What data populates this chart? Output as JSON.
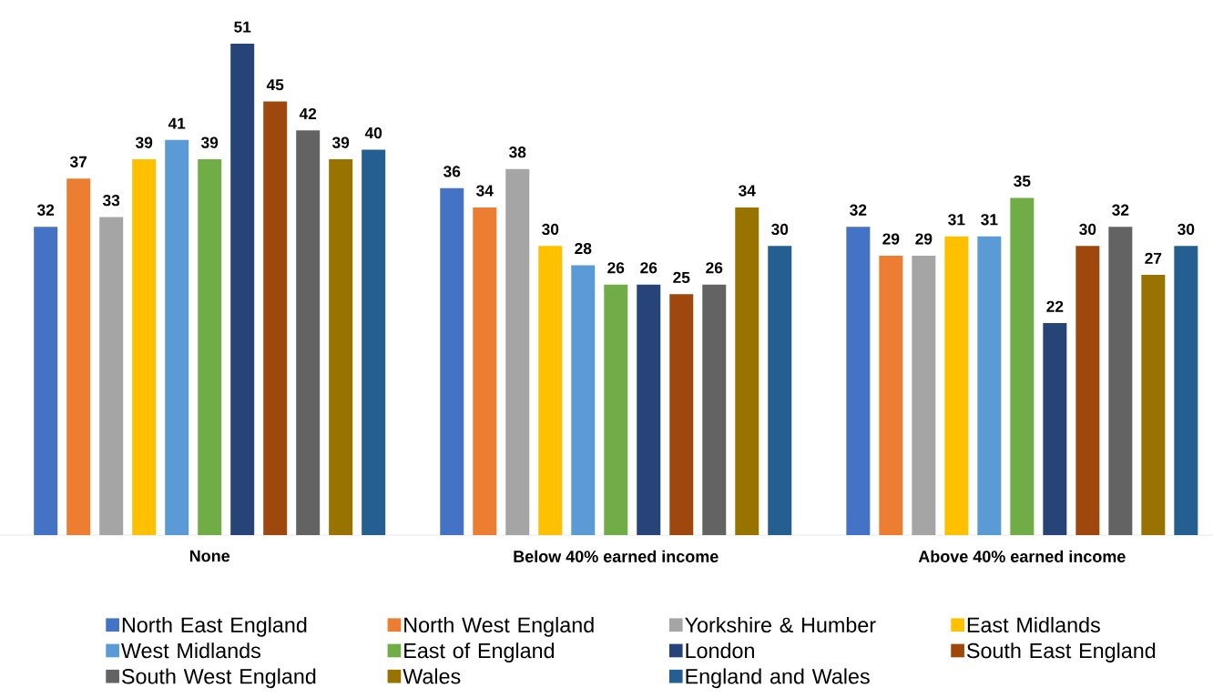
{
  "chart_data": {
    "type": "bar",
    "categories": [
      "None",
      "Below 40% earned income",
      "Above 40% earned income"
    ],
    "data_labels": true,
    "legend": "bottom",
    "series": [
      {
        "name": "North East England",
        "color": "#4472c4",
        "values": [
          32,
          36,
          32
        ]
      },
      {
        "name": "North West England",
        "color": "#ed7d31",
        "values": [
          37,
          34,
          29
        ]
      },
      {
        "name": "Yorkshire & Humber",
        "color": "#a5a5a5",
        "values": [
          33,
          38,
          29
        ]
      },
      {
        "name": "East Midlands",
        "color": "#ffc000",
        "values": [
          39,
          30,
          31
        ]
      },
      {
        "name": "West Midlands",
        "color": "#5b9bd5",
        "values": [
          41,
          28,
          31
        ]
      },
      {
        "name": "East of England",
        "color": "#70ad47",
        "values": [
          39,
          26,
          35
        ]
      },
      {
        "name": "London",
        "color": "#264478",
        "values": [
          51,
          26,
          22
        ]
      },
      {
        "name": "South East England",
        "color": "#9e480e",
        "values": [
          45,
          25,
          30
        ]
      },
      {
        "name": "South West England",
        "color": "#636363",
        "values": [
          42,
          26,
          32
        ]
      },
      {
        "name": "Wales",
        "color": "#997300",
        "values": [
          39,
          34,
          27
        ]
      },
      {
        "name": "England and Wales",
        "color": "#255e91",
        "values": [
          40,
          30,
          30
        ]
      }
    ]
  }
}
